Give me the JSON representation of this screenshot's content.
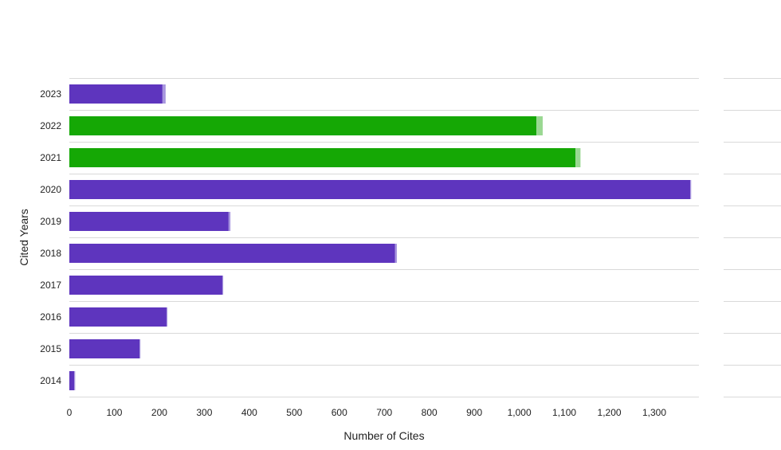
{
  "chart_data": {
    "type": "bar",
    "orientation": "horizontal",
    "stacked": true,
    "title": "",
    "xlabel": "Number of Cites",
    "ylabel": "Cited Years",
    "xlim": [
      0,
      1400
    ],
    "x_ticks": [
      0,
      100,
      200,
      300,
      400,
      500,
      600,
      700,
      800,
      900,
      1000,
      1100,
      1200,
      1300
    ],
    "x_tick_labels": [
      "0",
      "100",
      "200",
      "300",
      "400",
      "500",
      "600",
      "700",
      "800",
      "900",
      "1,000",
      "1,100",
      "1,200",
      "1,300"
    ],
    "categories": [
      "2023",
      "2022",
      "2021",
      "2020",
      "2019",
      "2018",
      "2017",
      "2016",
      "2015",
      "2014"
    ],
    "grid": true,
    "legend": "none",
    "series": [
      {
        "values": [
          207,
          1038,
          1125,
          1380,
          354,
          724,
          340,
          216,
          156,
          11
        ]
      },
      {
        "values": [
          7,
          14,
          11,
          2,
          4,
          4,
          2,
          2,
          2,
          2
        ]
      }
    ],
    "colors": {
      "primary": "#5e35be",
      "primary_light": "#a896df",
      "highlight": "#15a805",
      "highlight_light": "#9ad892",
      "highlighted_categories": [
        "2022",
        "2021"
      ],
      "grid": "#d9d9d9"
    }
  }
}
